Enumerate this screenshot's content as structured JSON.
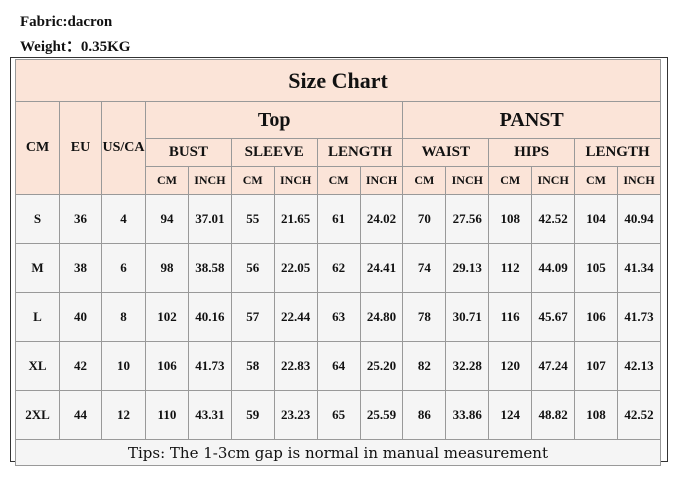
{
  "header": {
    "fabric": "Fabric:dacron",
    "weight": "Weight：0.35KG"
  },
  "table": {
    "title": "Size Chart",
    "groups": [
      "Top",
      "PANST"
    ],
    "columns": [
      "CM",
      "EU",
      "US/CA"
    ],
    "measures": [
      "BUST",
      "SLEEVE",
      "LENGTH",
      "WAIST",
      "HIPS",
      "LENGTH"
    ],
    "units": [
      "CM",
      "INCH",
      "CM",
      "INCH",
      "CM",
      "INCH",
      "CM",
      "INCH",
      "CM",
      "INCH",
      "CM",
      "INCH"
    ],
    "rows": [
      [
        "S",
        "36",
        "4",
        "94",
        "37.01",
        "55",
        "21.65",
        "61",
        "24.02",
        "70",
        "27.56",
        "108",
        "42.52",
        "104",
        "40.94"
      ],
      [
        "M",
        "38",
        "6",
        "98",
        "38.58",
        "56",
        "22.05",
        "62",
        "24.41",
        "74",
        "29.13",
        "112",
        "44.09",
        "105",
        "41.34"
      ],
      [
        "L",
        "40",
        "8",
        "102",
        "40.16",
        "57",
        "22.44",
        "63",
        "24.80",
        "78",
        "30.71",
        "116",
        "45.67",
        "106",
        "41.73"
      ],
      [
        "XL",
        "42",
        "10",
        "106",
        "41.73",
        "58",
        "22.83",
        "64",
        "25.20",
        "82",
        "32.28",
        "120",
        "47.24",
        "107",
        "42.13"
      ],
      [
        "2XL",
        "44",
        "12",
        "110",
        "43.31",
        "59",
        "23.23",
        "65",
        "25.59",
        "86",
        "33.86",
        "124",
        "48.82",
        "108",
        "42.52"
      ]
    ],
    "tips": "Tips: The 1-3cm gap is normal in manual measurement"
  }
}
